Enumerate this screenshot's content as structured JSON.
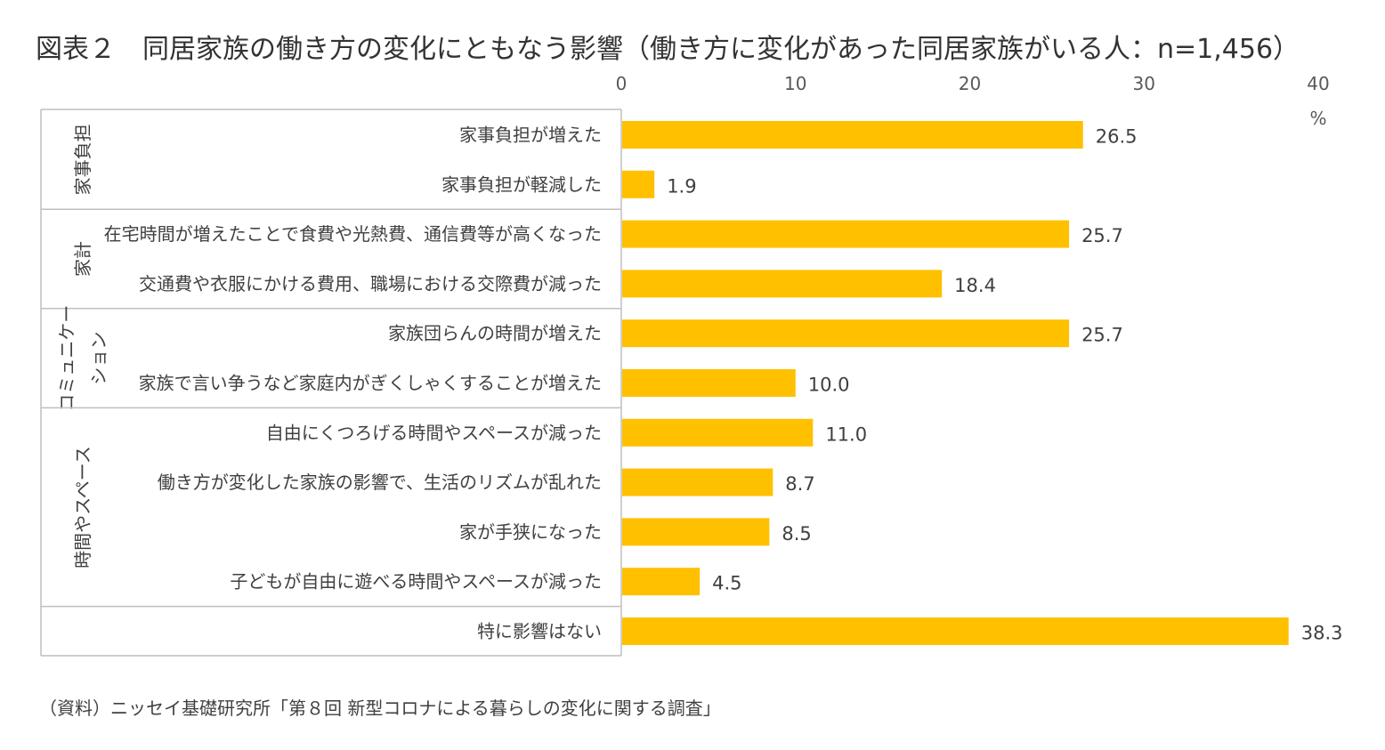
{
  "title": "図表２　同居家族の働き方の変化にともなう影響（働き方に変化があった同居家族がいる人：n=1,456）",
  "source": "（資料）ニッセイ基礎研究所「第８回 新型コロナによる暮らしの変化に関する調査」",
  "chart_data": {
    "type": "bar",
    "orientation": "horizontal",
    "unit": "%",
    "xlim": [
      0,
      40
    ],
    "xticks": [
      0,
      10,
      20,
      30,
      40
    ],
    "bar_color": "#FFC000",
    "groups": [
      {
        "name": "家事負担",
        "label_lines": [
          "家事負担"
        ],
        "start": 0,
        "end": 1
      },
      {
        "name": "家計",
        "label_lines": [
          "家計"
        ],
        "start": 2,
        "end": 3
      },
      {
        "name": "コミュニケーション",
        "label_lines": [
          "コミュニケー",
          "ション"
        ],
        "start": 4,
        "end": 5
      },
      {
        "name": "時間やスペース",
        "label_lines": [
          "時間やスペース"
        ],
        "start": 6,
        "end": 9
      },
      {
        "name": "",
        "label_lines": [],
        "start": 10,
        "end": 10
      }
    ],
    "categories": [
      "家事負担が増えた",
      "家事負担が軽減した",
      "在宅時間が増えたことで食費や光熱費、通信費等が高くなった",
      "交通費や衣服にかける費用、職場における交際費が減った",
      "家族団らんの時間が増えた",
      "家族で言い争うなど家庭内がぎくしゃくすることが増えた",
      "自由にくつろげる時間やスペースが減った",
      "働き方が変化した家族の影響で、生活のリズムが乱れた",
      "家が手狭になった",
      "子どもが自由に遊べる時間やスペースが減った",
      "特に影響はない"
    ],
    "values": [
      26.5,
      1.9,
      25.7,
      18.4,
      25.7,
      10.0,
      11.0,
      8.7,
      8.5,
      4.5,
      38.3
    ],
    "value_labels": [
      "26.5",
      "1.9",
      "25.7",
      "18.4",
      "25.7",
      "10.0",
      "11.0",
      "8.7",
      "8.5",
      "4.5",
      "38.3"
    ]
  }
}
